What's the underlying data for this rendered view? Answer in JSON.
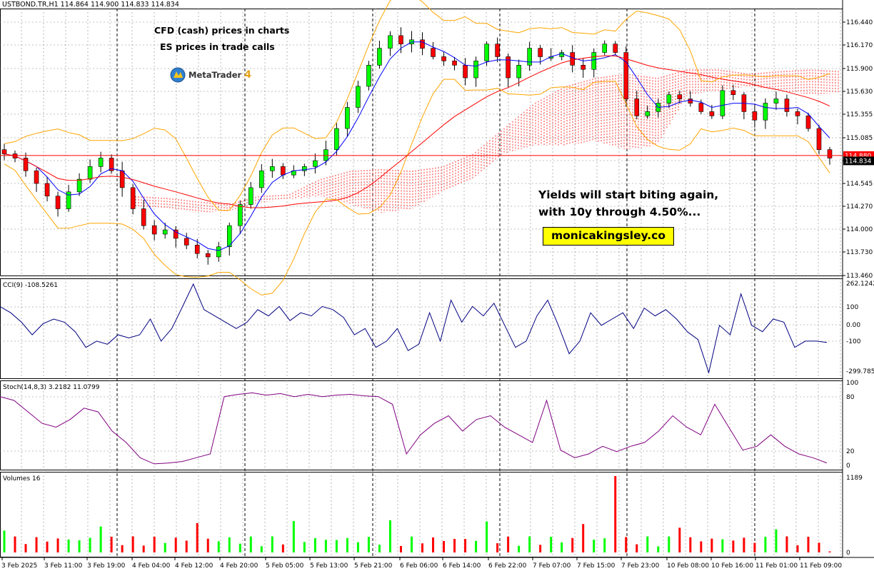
{
  "symbol_header": "USTBOND.TR,H1  114.864 114.900 114.833 114.834",
  "notes": {
    "line1": "CFD (cash) prices in charts",
    "line2": "ES prices in trade calls"
  },
  "logo": {
    "name": "MetaTrader",
    "version": "4"
  },
  "annotation": {
    "line1": "Yields will start biting again,",
    "line2": "with 10y through 4.50%...",
    "brand": "monicakingsley.co",
    "brand_bg": "#ffff00"
  },
  "colors": {
    "bull": "#00ff00",
    "bear": "#ff0000",
    "bollinger": "#ffa500",
    "fast_ma": "#0000ff",
    "slow_ma": "#ff0000",
    "cloud": "#ff0000",
    "cci": "#000080",
    "stoch": "#800080",
    "price_line": "#ff0000",
    "grid": "#000000"
  },
  "chart_data": [
    {
      "type": "candlestick",
      "title": "USTBOND.TR,H1",
      "ylim": [
        113.46,
        116.62
      ],
      "y_ticks": [
        "116.440",
        "116.170",
        "115.900",
        "115.630",
        "115.355",
        "115.085",
        "114.815",
        "114.545",
        "114.270",
        "114.000",
        "113.730",
        "113.460"
      ],
      "current_price_label": "114.834",
      "price_line_label": "114.880",
      "x_tick_labels": [
        "3 Feb 2025",
        "3 Feb 11:00",
        "3 Feb 19:00",
        "4 Feb 04:00",
        "4 Feb 12:00",
        "4 Feb 20:00",
        "5 Feb 05:00",
        "5 Feb 13:00",
        "5 Feb 21:00",
        "6 Feb 06:00",
        "6 Feb 14:00",
        "6 Feb 22:00",
        "7 Feb 07:00",
        "7 Feb 15:00",
        "7 Feb 23:00",
        "10 Feb 08:00",
        "10 Feb 16:00",
        "11 Feb 01:00",
        "11 Feb 09:00"
      ],
      "series_close": [
        114.9,
        114.85,
        114.7,
        114.55,
        114.4,
        114.25,
        114.45,
        114.6,
        114.75,
        114.85,
        114.7,
        114.5,
        114.25,
        114.05,
        113.95,
        114.0,
        113.9,
        113.82,
        113.72,
        113.68,
        113.8,
        114.05,
        114.3,
        114.5,
        114.7,
        114.75,
        114.65,
        114.7,
        114.75,
        114.82,
        114.95,
        115.2,
        115.45,
        115.7,
        115.95,
        116.15,
        116.3,
        116.2,
        116.25,
        116.15,
        116.05,
        116.0,
        115.95,
        115.8,
        116.0,
        116.2,
        116.05,
        115.8,
        115.95,
        116.15,
        116.05,
        116.05,
        116.1,
        115.95,
        115.9,
        116.1,
        116.2,
        116.1,
        115.55,
        115.35,
        115.4,
        115.5,
        115.6,
        115.55,
        115.5,
        115.4,
        115.35,
        115.65,
        115.6,
        115.4,
        115.3,
        115.5,
        115.55,
        115.4,
        115.35,
        115.2,
        114.95,
        114.85
      ],
      "bollinger_upper_end": 115.05,
      "bollinger_lower_end": 114.7
    },
    {
      "type": "line",
      "title": "CCI(9) -108.5261",
      "ylim": [
        -299.7858,
        262.1242
      ],
      "y_ticks": [
        "262.1242",
        "100",
        "0.00",
        "-100",
        "-299.7858"
      ],
      "values": [
        120,
        80,
        20,
        -60,
        10,
        40,
        20,
        -40,
        -140,
        -100,
        -120,
        -60,
        -80,
        -60,
        40,
        -100,
        -20,
        120,
        262,
        100,
        60,
        20,
        -20,
        20,
        100,
        60,
        120,
        30,
        80,
        60,
        120,
        100,
        50,
        -60,
        -20,
        -140,
        -100,
        -20,
        -160,
        -120,
        80,
        -100,
        160,
        20,
        120,
        60,
        140,
        0,
        -140,
        -100,
        60,
        160,
        0,
        -180,
        -100,
        80,
        0,
        40,
        80,
        -20,
        110,
        60,
        100,
        40,
        -40,
        -90,
        -300,
        0,
        -60,
        200,
        0,
        -40,
        40,
        20,
        -140,
        -100,
        -100,
        -108.5
      ]
    },
    {
      "type": "line",
      "title": "Stoch(14,8,3) 3.2182 11.0799",
      "ylim": [
        0,
        100
      ],
      "y_ticks": [
        "100",
        "80",
        "20",
        "0"
      ],
      "values": [
        90,
        85,
        70,
        55,
        50,
        60,
        75,
        70,
        45,
        30,
        10,
        2,
        3,
        5,
        10,
        15,
        90,
        93,
        95,
        92,
        94,
        90,
        93,
        90,
        92,
        93,
        91,
        90,
        80,
        15,
        40,
        55,
        65,
        45,
        60,
        65,
        50,
        40,
        30,
        85,
        20,
        10,
        15,
        25,
        18,
        25,
        30,
        45,
        65,
        50,
        40,
        80,
        50,
        20,
        25,
        40,
        25,
        15,
        10,
        3.2
      ]
    },
    {
      "type": "bar",
      "title": "Volumes 16",
      "ylim": [
        0,
        1189
      ],
      "y_ticks": [
        "1189",
        "0"
      ],
      "max_volume": 1189,
      "last_volume": 16
    }
  ]
}
